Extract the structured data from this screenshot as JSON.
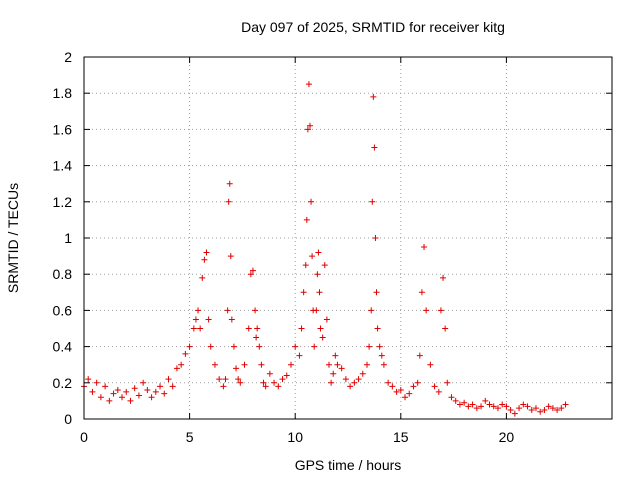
{
  "chart_data": {
    "type": "scatter",
    "title": "Day 097 of 2025, SRMTID for receiver kitg",
    "xlabel": "GPS time / hours",
    "ylabel": "SRMTID / TECUs",
    "xlim": [
      0,
      25
    ],
    "ylim": [
      0,
      2
    ],
    "xticks": [
      0,
      5,
      10,
      15,
      20
    ],
    "yticks": [
      0,
      0.2,
      0.4,
      0.6,
      0.8,
      1,
      1.2,
      1.4,
      1.6,
      1.8,
      2
    ],
    "ytick_labels": [
      "0",
      "0.2",
      "0.4",
      "0.6",
      "0.8",
      "1",
      "1.2",
      "1.4",
      "1.6",
      "1.8",
      "2"
    ],
    "grid": true,
    "marker": "+",
    "color": "#e00000",
    "series": [
      {
        "name": "SRMTID",
        "x": [
          0.0,
          0.2,
          0.4,
          0.6,
          0.8,
          1.0,
          1.2,
          1.4,
          1.6,
          1.8,
          2.0,
          2.2,
          2.4,
          2.6,
          2.8,
          3.0,
          3.2,
          3.4,
          3.6,
          3.8,
          4.0,
          4.2,
          4.4,
          4.6,
          4.8,
          5.0,
          5.2,
          5.3,
          5.4,
          5.5,
          5.6,
          5.7,
          5.8,
          5.9,
          6.0,
          6.2,
          6.4,
          6.6,
          6.7,
          6.8,
          6.85,
          6.9,
          6.95,
          7.0,
          7.1,
          7.2,
          7.3,
          7.4,
          7.6,
          7.8,
          7.9,
          8.0,
          8.1,
          8.15,
          8.2,
          8.3,
          8.4,
          8.5,
          8.6,
          8.8,
          9.0,
          9.2,
          9.4,
          9.6,
          9.8,
          10.0,
          10.2,
          10.3,
          10.4,
          10.5,
          10.55,
          10.6,
          10.65,
          10.7,
          10.75,
          10.8,
          10.85,
          10.9,
          11.0,
          11.05,
          11.1,
          11.15,
          11.2,
          11.3,
          11.4,
          11.5,
          11.6,
          11.7,
          11.8,
          11.9,
          12.0,
          12.2,
          12.4,
          12.6,
          12.8,
          13.0,
          13.2,
          13.4,
          13.5,
          13.6,
          13.65,
          13.7,
          13.75,
          13.8,
          13.85,
          13.9,
          14.0,
          14.1,
          14.2,
          14.4,
          14.6,
          14.8,
          15.0,
          15.2,
          15.4,
          15.6,
          15.8,
          15.9,
          16.0,
          16.1,
          16.2,
          16.4,
          16.6,
          16.8,
          16.9,
          17.0,
          17.1,
          17.2,
          17.4,
          17.6,
          17.8,
          18.0,
          18.2,
          18.4,
          18.6,
          18.8,
          19.0,
          19.2,
          19.4,
          19.6,
          19.8,
          20.0,
          20.2,
          20.4,
          20.6,
          20.8,
          21.0,
          21.2,
          21.4,
          21.6,
          21.8,
          22.0,
          22.2,
          22.4,
          22.6,
          22.8
        ],
        "y": [
          0.18,
          0.22,
          0.15,
          0.2,
          0.12,
          0.18,
          0.1,
          0.14,
          0.16,
          0.12,
          0.15,
          0.1,
          0.17,
          0.13,
          0.2,
          0.16,
          0.12,
          0.15,
          0.18,
          0.14,
          0.22,
          0.18,
          0.28,
          0.3,
          0.36,
          0.4,
          0.5,
          0.55,
          0.6,
          0.5,
          0.78,
          0.88,
          0.92,
          0.55,
          0.4,
          0.3,
          0.22,
          0.18,
          0.22,
          0.6,
          1.2,
          1.3,
          0.9,
          0.55,
          0.4,
          0.28,
          0.22,
          0.2,
          0.3,
          0.5,
          0.8,
          0.82,
          0.6,
          0.45,
          0.5,
          0.4,
          0.3,
          0.2,
          0.18,
          0.25,
          0.2,
          0.18,
          0.22,
          0.24,
          0.3,
          0.4,
          0.35,
          0.5,
          0.7,
          0.85,
          1.1,
          1.6,
          1.85,
          1.62,
          1.2,
          0.9,
          0.6,
          0.4,
          0.6,
          0.8,
          0.92,
          0.7,
          0.5,
          0.45,
          0.85,
          0.55,
          0.3,
          0.2,
          0.25,
          0.35,
          0.3,
          0.28,
          0.22,
          0.18,
          0.2,
          0.22,
          0.25,
          0.3,
          0.4,
          0.6,
          1.2,
          1.78,
          1.5,
          1.0,
          0.7,
          0.5,
          0.4,
          0.35,
          0.3,
          0.2,
          0.18,
          0.15,
          0.16,
          0.12,
          0.14,
          0.18,
          0.2,
          0.35,
          0.7,
          0.95,
          0.6,
          0.3,
          0.18,
          0.15,
          0.6,
          0.78,
          0.5,
          0.2,
          0.12,
          0.1,
          0.08,
          0.09,
          0.07,
          0.08,
          0.06,
          0.07,
          0.1,
          0.08,
          0.07,
          0.06,
          0.08,
          0.07,
          0.05,
          0.03,
          0.06,
          0.08,
          0.07,
          0.05,
          0.06,
          0.04,
          0.05,
          0.07,
          0.06,
          0.05,
          0.06,
          0.08
        ]
      }
    ]
  }
}
